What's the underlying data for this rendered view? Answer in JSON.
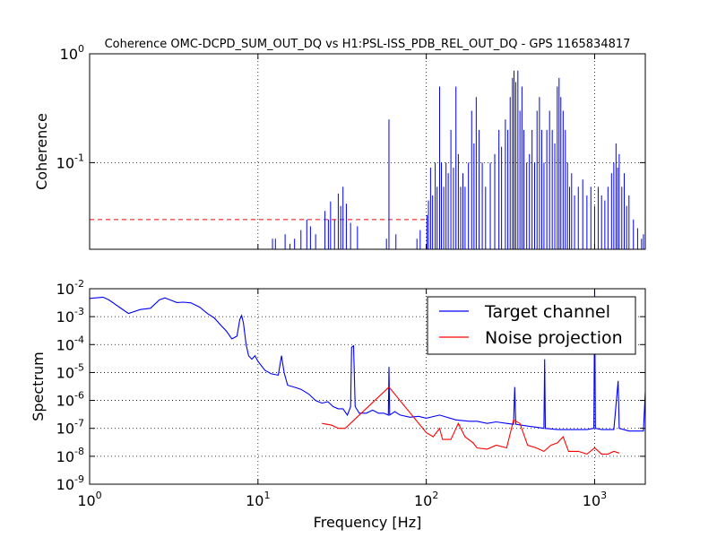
{
  "chart_data": [
    {
      "type": "line",
      "title": "Coherence OMC-DCPD_SUM_OUT_DQ vs H1:PSL-ISS_PDB_REL_OUT_DQ - GPS 1165834817",
      "xlabel": "",
      "ylabel": "Coherence",
      "xscale": "log",
      "yscale": "log",
      "xlim": [
        1,
        2000
      ],
      "ylim": [
        0.016,
        1.0
      ],
      "grid": true,
      "y_tick_labels": [
        {
          "mant": "10",
          "exp": "0",
          "value": 1
        },
        {
          "mant": "10",
          "exp": "-1",
          "value": 0.1
        }
      ],
      "threshold": {
        "y": 0.03,
        "color": "#ff0000"
      },
      "series": [
        {
          "color": "#0000ff",
          "peaks": [
            [
              12.2,
              0.02
            ],
            [
              12.7,
              0.02
            ],
            [
              14.5,
              0.022
            ],
            [
              15.5,
              0.018
            ],
            [
              16.5,
              0.02
            ],
            [
              18.0,
              0.024
            ],
            [
              19.5,
              0.03
            ],
            [
              20.5,
              0.026
            ],
            [
              22.0,
              0.022
            ],
            [
              25.0,
              0.036
            ],
            [
              26.2,
              0.03
            ],
            [
              27.0,
              0.044
            ],
            [
              28.5,
              0.03
            ],
            [
              30.0,
              0.052
            ],
            [
              31.0,
              0.04
            ],
            [
              32.0,
              0.06
            ],
            [
              33.5,
              0.042
            ],
            [
              35.5,
              0.028
            ],
            [
              39.0,
              0.026
            ],
            [
              58.0,
              0.02
            ],
            [
              60.0,
              0.25
            ],
            [
              66.0,
              0.022
            ],
            [
              88.0,
              0.02
            ],
            [
              92.0,
              0.024
            ],
            [
              101,
              0.033
            ],
            [
              103,
              0.045
            ],
            [
              106,
              0.09
            ],
            [
              109,
              0.05
            ],
            [
              113,
              0.1
            ],
            [
              116,
              0.06
            ],
            [
              120,
              0.5
            ],
            [
              123,
              0.1
            ],
            [
              127,
              0.06
            ],
            [
              131,
              0.1
            ],
            [
              135,
              0.08
            ],
            [
              140,
              0.2
            ],
            [
              145,
              0.09
            ],
            [
              150,
              0.5
            ],
            [
              155,
              0.12
            ],
            [
              160,
              0.06
            ],
            [
              165,
              0.08
            ],
            [
              170,
              0.06
            ],
            [
              178,
              0.1
            ],
            [
              186,
              0.3
            ],
            [
              192,
              0.15
            ],
            [
              198,
              0.4
            ],
            [
              206,
              0.2
            ],
            [
              215,
              0.1
            ],
            [
              225,
              0.06
            ],
            [
              240,
              0.1
            ],
            [
              255,
              0.12
            ],
            [
              270,
              0.2
            ],
            [
              280,
              0.14
            ],
            [
              295,
              0.25
            ],
            [
              305,
              0.2
            ],
            [
              315,
              0.4
            ],
            [
              325,
              0.6
            ],
            [
              332,
              0.7
            ],
            [
              340,
              0.55
            ],
            [
              350,
              0.7
            ],
            [
              360,
              0.3
            ],
            [
              370,
              0.5
            ],
            [
              380,
              0.2
            ],
            [
              395,
              0.1
            ],
            [
              410,
              0.12
            ],
            [
              425,
              0.2
            ],
            [
              440,
              0.1
            ],
            [
              455,
              0.3
            ],
            [
              470,
              0.4
            ],
            [
              485,
              0.2
            ],
            [
              500,
              0.1
            ],
            [
              520,
              0.2
            ],
            [
              540,
              0.3
            ],
            [
              560,
              0.2
            ],
            [
              580,
              0.15
            ],
            [
              600,
              0.5
            ],
            [
              615,
              0.6
            ],
            [
              630,
              0.4
            ],
            [
              650,
              0.3
            ],
            [
              670,
              0.2
            ],
            [
              690,
              0.1
            ],
            [
              710,
              0.06
            ],
            [
              730,
              0.08
            ],
            [
              760,
              0.05
            ],
            [
              800,
              0.06
            ],
            [
              850,
              0.07
            ],
            [
              900,
              0.05
            ],
            [
              950,
              0.06
            ],
            [
              1000,
              0.04
            ],
            [
              1050,
              0.06
            ],
            [
              1100,
              0.05
            ],
            [
              1150,
              0.045
            ],
            [
              1200,
              0.06
            ],
            [
              1260,
              0.08
            ],
            [
              1300,
              0.1
            ],
            [
              1340,
              0.15
            ],
            [
              1370,
              0.09
            ],
            [
              1400,
              0.12
            ],
            [
              1450,
              0.06
            ],
            [
              1500,
              0.08
            ],
            [
              1550,
              0.04
            ],
            [
              1600,
              0.05
            ],
            [
              1700,
              0.03
            ],
            [
              1800,
              0.025
            ],
            [
              1900,
              0.02
            ],
            [
              1950,
              0.022
            ]
          ]
        }
      ]
    },
    {
      "type": "line",
      "title": "",
      "xlabel": "Frequency [Hz]",
      "ylabel": "Spectrum",
      "xscale": "log",
      "yscale": "log",
      "xlim": [
        1,
        2000
      ],
      "ylim": [
        1e-09,
        0.01
      ],
      "grid": true,
      "x_tick_labels": [
        {
          "mant": "10",
          "exp": "0",
          "value": 1
        },
        {
          "mant": "10",
          "exp": "1",
          "value": 10
        },
        {
          "mant": "10",
          "exp": "2",
          "value": 100
        },
        {
          "mant": "10",
          "exp": "3",
          "value": 1000
        }
      ],
      "y_tick_labels": [
        {
          "mant": "10",
          "exp": "-2",
          "value": 0.01
        },
        {
          "mant": "10",
          "exp": "-3",
          "value": 0.001
        },
        {
          "mant": "10",
          "exp": "-4",
          "value": 0.0001
        },
        {
          "mant": "10",
          "exp": "-5",
          "value": 1e-05
        },
        {
          "mant": "10",
          "exp": "-6",
          "value": 1e-06
        },
        {
          "mant": "10",
          "exp": "-7",
          "value": 1e-07
        },
        {
          "mant": "10",
          "exp": "-8",
          "value": 1e-08
        },
        {
          "mant": "10",
          "exp": "-9",
          "value": 1e-09
        }
      ],
      "legend": {
        "position": "top-right"
      },
      "series": [
        {
          "name": "Target channel",
          "color": "#0000ff",
          "points": [
            [
              1.0,
              0.0045
            ],
            [
              1.2,
              0.005
            ],
            [
              1.3,
              0.004
            ],
            [
              1.5,
              0.0022
            ],
            [
              1.7,
              0.0013
            ],
            [
              2.0,
              0.0018
            ],
            [
              2.3,
              0.002
            ],
            [
              2.6,
              0.004
            ],
            [
              2.8,
              0.0047
            ],
            [
              3.0,
              0.004
            ],
            [
              3.3,
              0.0032
            ],
            [
              3.6,
              0.0033
            ],
            [
              4.0,
              0.0031
            ],
            [
              4.5,
              0.0022
            ],
            [
              5.0,
              0.0013
            ],
            [
              5.5,
              0.0009
            ],
            [
              6.0,
              0.0005
            ],
            [
              6.5,
              0.0003
            ],
            [
              7.0,
              0.00016
            ],
            [
              7.5,
              0.0002
            ],
            [
              7.8,
              0.0008
            ],
            [
              8.0,
              0.0011
            ],
            [
              8.2,
              0.0006
            ],
            [
              8.5,
              0.0001
            ],
            [
              8.8,
              4e-05
            ],
            [
              9.2,
              3e-05
            ],
            [
              9.6,
              4e-05
            ],
            [
              10.0,
              2.5e-05
            ],
            [
              11.0,
              1.2e-05
            ],
            [
              12.0,
              9e-06
            ],
            [
              13.2,
              8e-06
            ],
            [
              13.8,
              4e-05
            ],
            [
              14.3,
              1e-05
            ],
            [
              15.0,
              3.5e-06
            ],
            [
              17.0,
              2.8e-06
            ],
            [
              18.0,
              2.5e-06
            ],
            [
              20.0,
              1.7e-06
            ],
            [
              22.0,
              1e-06
            ],
            [
              24.0,
              8e-07
            ],
            [
              26.0,
              9e-07
            ],
            [
              28.0,
              6e-07
            ],
            [
              30.0,
              5e-07
            ],
            [
              32.0,
              5e-07
            ],
            [
              34.0,
              3e-07
            ],
            [
              35.5,
              6e-07
            ],
            [
              36.0,
              8e-05
            ],
            [
              37.0,
              9e-05
            ],
            [
              37.8,
              6e-07
            ],
            [
              40.0,
              3.5e-07
            ],
            [
              44.0,
              3.5e-07
            ],
            [
              48.0,
              4.5e-07
            ],
            [
              52.0,
              3.5e-07
            ],
            [
              56.0,
              3.5e-07
            ],
            [
              59.5,
              3e-07
            ],
            [
              60.0,
              1.6e-05
            ],
            [
              60.6,
              3e-07
            ],
            [
              65.0,
              4e-07
            ],
            [
              70.0,
              3e-07
            ],
            [
              80.0,
              2.5e-07
            ],
            [
              90.0,
              2.7e-07
            ],
            [
              100.0,
              2.3e-07
            ],
            [
              120.0,
              3e-07
            ],
            [
              150.0,
              2e-07
            ],
            [
              180.0,
              1.8e-07
            ],
            [
              200.0,
              1.8e-07
            ],
            [
              230.0,
              1.5e-07
            ],
            [
              260.0,
              1.7e-07
            ],
            [
              300.0,
              1.5e-07
            ],
            [
              330.0,
              1.4e-07
            ],
            [
              335.0,
              3e-06
            ],
            [
              340.0,
              1.4e-07
            ],
            [
              400.0,
              1.2e-07
            ],
            [
              450.0,
              1.1e-07
            ],
            [
              500.0,
              1e-07
            ],
            [
              505.0,
              3e-05
            ],
            [
              510.0,
              1e-07
            ],
            [
              600.0,
              9e-08
            ],
            [
              700.0,
              9e-08
            ],
            [
              800.0,
              9e-08
            ],
            [
              900.0,
              9e-08
            ],
            [
              990.0,
              1e-07
            ],
            [
              1000.0,
              0.008
            ],
            [
              1010.0,
              1e-07
            ],
            [
              1100.0,
              9e-08
            ],
            [
              1200.0,
              9e-08
            ],
            [
              1300.0,
              9e-08
            ],
            [
              1380.0,
              5e-06
            ],
            [
              1400.0,
              1e-07
            ],
            [
              1600.0,
              8e-08
            ],
            [
              1800.0,
              8e-08
            ],
            [
              1950.0,
              8e-08
            ],
            [
              2000.0,
              2e-06
            ]
          ]
        },
        {
          "name": "Noise projection",
          "color": "#ff0000",
          "points": [
            [
              24.0,
              1.5e-07
            ],
            [
              27.5,
              1.3e-07
            ],
            [
              30.0,
              1e-07
            ],
            [
              33.0,
              1e-07
            ],
            [
              60.0,
              3e-06
            ],
            [
              100.0,
              7e-08
            ],
            [
              110.0,
              5e-08
            ],
            [
              120.0,
              1e-07
            ],
            [
              125.0,
              4e-08
            ],
            [
              140.0,
              4e-08
            ],
            [
              155.0,
              1.5e-07
            ],
            [
              170.0,
              5e-08
            ],
            [
              190.0,
              3e-08
            ],
            [
              200.0,
              2e-08
            ],
            [
              230.0,
              1.8e-08
            ],
            [
              260.0,
              2.5e-08
            ],
            [
              300.0,
              2e-08
            ],
            [
              330.0,
              2e-07
            ],
            [
              360.0,
              1.5e-07
            ],
            [
              400.0,
              2.5e-08
            ],
            [
              450.0,
              2e-08
            ],
            [
              500.0,
              1.5e-08
            ],
            [
              550.0,
              2.5e-08
            ],
            [
              600.0,
              3e-08
            ],
            [
              650.0,
              5e-08
            ],
            [
              700.0,
              1.5e-08
            ],
            [
              800.0,
              1.5e-08
            ],
            [
              900.0,
              1.2e-08
            ],
            [
              1000.0,
              2e-08
            ],
            [
              1100.0,
              1.2e-08
            ],
            [
              1200.0,
              1.2e-08
            ],
            [
              1300.0,
              1.5e-08
            ],
            [
              1400.0,
              1.3e-08
            ]
          ]
        }
      ]
    }
  ]
}
